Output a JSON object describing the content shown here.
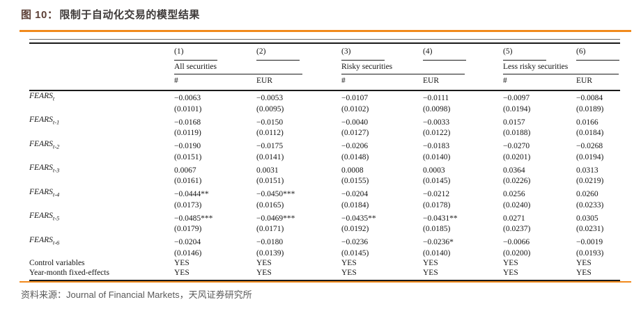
{
  "title": {
    "prefix": "图 10：",
    "text": "限制于自动化交易的模型结果"
  },
  "colors": {
    "accent_orange": "#f18a1d",
    "title_text": "#3e3a39",
    "footer_text": "#595959",
    "table_text": "#141414"
  },
  "table": {
    "column_numbers": [
      "(1)",
      "(2)",
      "(3)",
      "(4)",
      "(5)",
      "(6)"
    ],
    "groups": [
      {
        "label": "All securities"
      },
      {
        "label": "Risky securities"
      },
      {
        "label": "Less risky securities"
      }
    ],
    "measure_headers": [
      "#",
      "EUR",
      "#",
      "EUR",
      "#",
      "EUR"
    ],
    "rows": [
      {
        "label_base": "FEARS",
        "label_sub": "t",
        "coef": [
          "−0.0063",
          "−0.0053",
          "−0.0107",
          "−0.0111",
          "−0.0097",
          "−0.0084"
        ],
        "se": [
          "(0.0101)",
          "(0.0095)",
          "(0.0102)",
          "(0.0098)",
          "(0.0194)",
          "(0.0189)"
        ]
      },
      {
        "label_base": "FEARS",
        "label_sub": "t-1",
        "coef": [
          "−0.0168",
          "−0.0150",
          "−0.0040",
          "−0.0033",
          "0.0157",
          "0.0166"
        ],
        "se": [
          "(0.0119)",
          "(0.0112)",
          "(0.0127)",
          "(0.0122)",
          "(0.0188)",
          "(0.0184)"
        ]
      },
      {
        "label_base": "FEARS",
        "label_sub": "t-2",
        "coef": [
          "−0.0190",
          "−0.0175",
          "−0.0206",
          "−0.0183",
          "−0.0270",
          "−0.0268"
        ],
        "se": [
          "(0.0151)",
          "(0.0141)",
          "(0.0148)",
          "(0.0140)",
          "(0.0201)",
          "(0.0194)"
        ]
      },
      {
        "label_base": "FEARS",
        "label_sub": "t-3",
        "coef": [
          "0.0067",
          "0.0031",
          "0.0008",
          "0.0003",
          "0.0364",
          "0.0313"
        ],
        "se": [
          "(0.0161)",
          "(0.0151)",
          "(0.0155)",
          "(0.0145)",
          "(0.0226)",
          "(0.0219)"
        ]
      },
      {
        "label_base": "FEARS",
        "label_sub": "t-4",
        "coef": [
          "−0.0444**",
          "−0.0450***",
          "−0.0204",
          "−0.0212",
          "0.0256",
          "0.0260"
        ],
        "se": [
          "(0.0173)",
          "(0.0165)",
          "(0.0184)",
          "(0.0178)",
          "(0.0240)",
          "(0.0233)"
        ]
      },
      {
        "label_base": "FEARS",
        "label_sub": "t-5",
        "coef": [
          "−0.0485***",
          "−0.0469***",
          "−0.0435**",
          "−0.0431**",
          "0.0271",
          "0.0305"
        ],
        "se": [
          "(0.0179)",
          "(0.0171)",
          "(0.0192)",
          "(0.0185)",
          "(0.0237)",
          "(0.0231)"
        ]
      },
      {
        "label_base": "FEARS",
        "label_sub": "t-6",
        "coef": [
          "−0.0204",
          "−0.0180",
          "−0.0236",
          "−0.0236*",
          "−0.0066",
          "−0.0019"
        ],
        "se": [
          "(0.0146)",
          "(0.0139)",
          "(0.0145)",
          "(0.0140)",
          "(0.0200)",
          "(0.0193)"
        ]
      }
    ],
    "summary_rows": [
      {
        "label": "Control variables",
        "values": [
          "YES",
          "YES",
          "YES",
          "YES",
          "YES",
          "YES"
        ]
      },
      {
        "label": "Year-month fixed-effects",
        "values": [
          "YES",
          "YES",
          "YES",
          "YES",
          "YES",
          "YES"
        ]
      }
    ]
  },
  "footer": {
    "source_label": "资料来源：",
    "source_text": "Journal of Financial Markets，天风证券研究所"
  }
}
